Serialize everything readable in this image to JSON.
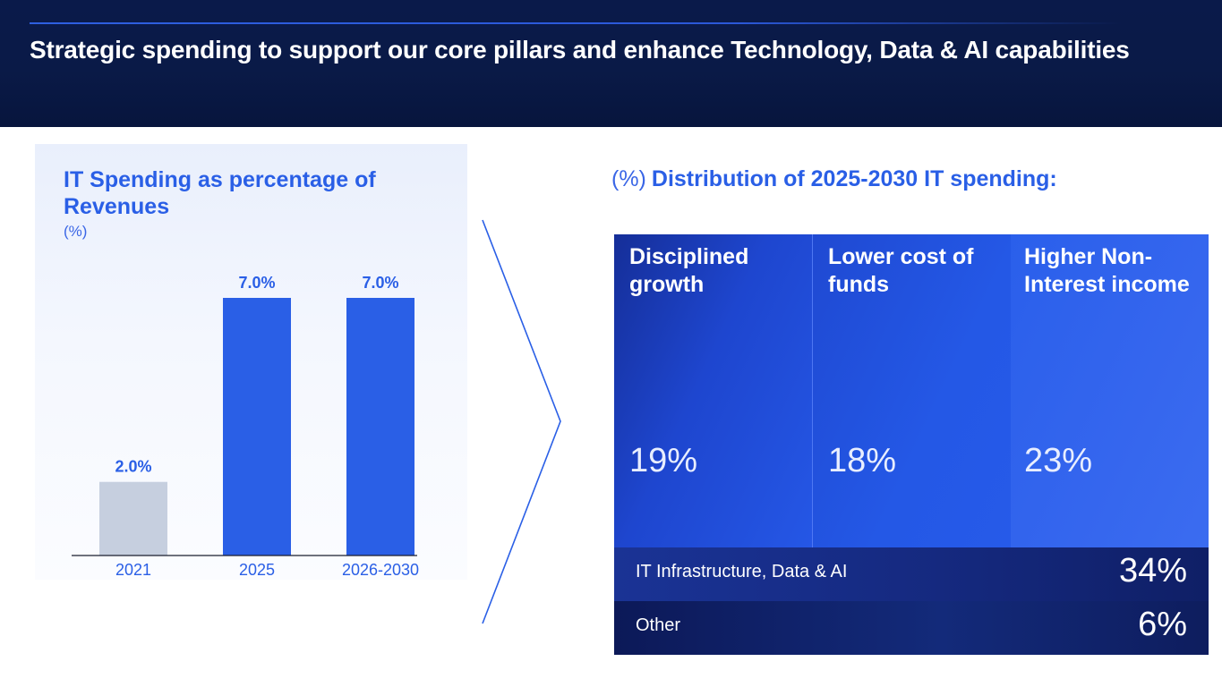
{
  "header": {
    "title": "Strategic spending  to support our core pillars and enhance Technology, Data & AI capabilities"
  },
  "left_panel": {
    "title": "IT Spending as percentage of Revenues",
    "unit": "(%)"
  },
  "chart_data": {
    "type": "bar",
    "title": "IT Spending as percentage of Revenues",
    "ylabel": "(%)",
    "xlabel": "",
    "categories": [
      "2021",
      "2025",
      "2026-2030"
    ],
    "values": [
      2.0,
      7.0,
      7.0
    ],
    "data_labels": [
      "2.0%",
      "7.0%",
      "7.0%"
    ],
    "colors": [
      "#c6cfdf",
      "#2a5fe6",
      "#2a5fe6"
    ],
    "ylim": [
      0,
      7.0
    ],
    "grid": false,
    "legend": "none"
  },
  "right_panel": {
    "title_prefix": "(%)",
    "title": "Distribution of 2025-2030 IT spending:",
    "pillars": [
      {
        "label": "Disciplined growth",
        "value": "19%"
      },
      {
        "label": "Lower cost of funds",
        "value": "18%"
      },
      {
        "label": "Higher Non-Interest income",
        "value": "23%"
      }
    ],
    "bands": [
      {
        "label": "IT Infrastructure, Data & AI",
        "value": "34%"
      },
      {
        "label": "Other",
        "value": "6%"
      }
    ]
  },
  "colors": {
    "header_bg": "#0a1a4a",
    "accent": "#2a5fe6",
    "bar_muted": "#c6cfdf",
    "white": "#ffffff"
  }
}
